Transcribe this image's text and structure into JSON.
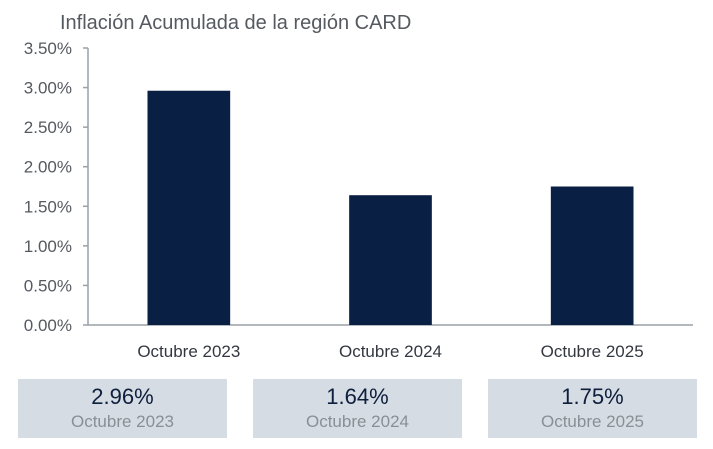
{
  "chart_data": {
    "type": "bar",
    "title": "Inflación Acumulada de la región CARD",
    "categories": [
      "Octubre 2023",
      "Octubre 2024",
      "Octubre 2025"
    ],
    "values": [
      2.96,
      1.64,
      1.75
    ],
    "yticks": [
      "0.00%",
      "0.50%",
      "1.00%",
      "1.50%",
      "2.00%",
      "2.50%",
      "3.00%",
      "3.50%"
    ],
    "ylim": [
      0,
      3.5
    ],
    "grid": false,
    "bar_color": "#0a1f44"
  },
  "summary_cards": [
    {
      "value": "2.96%",
      "label": "Octubre 2023"
    },
    {
      "value": "1.64%",
      "label": "Octubre 2024"
    },
    {
      "value": "1.75%",
      "label": "Octubre 2025"
    }
  ]
}
